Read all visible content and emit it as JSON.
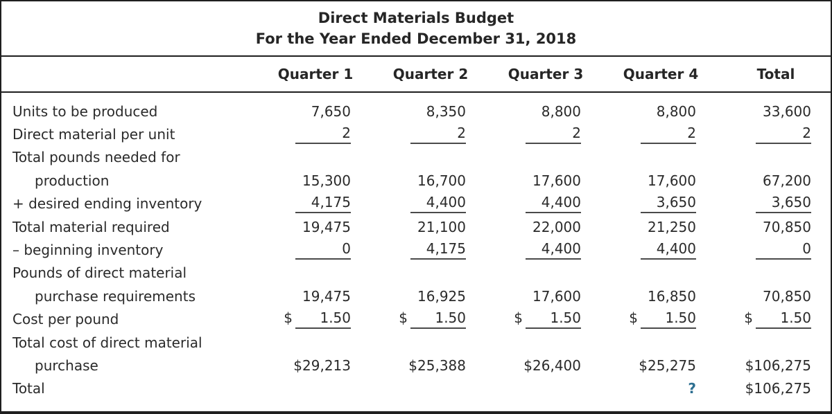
{
  "title": {
    "line1": "Direct Materials Budget",
    "line2": "For the Year Ended December 31, 2018"
  },
  "columns": {
    "quarter1": "Quarter 1",
    "quarter2": "Quarter 2",
    "quarter3": "Quarter 3",
    "quarter4": "Quarter 4",
    "total": "Total"
  },
  "currency": "$",
  "colors": {
    "text": "#2a2a2a",
    "border": "#1f1f1f",
    "underline": "#4a4a4a",
    "question_mark": "#2d6f91"
  },
  "rows": [
    {
      "label": "Units to be produced",
      "values": [
        "7,650",
        "8,350",
        "8,800",
        "8,800",
        "33,600"
      ]
    },
    {
      "label": "Direct material per unit",
      "values": [
        "2",
        "2",
        "2",
        "2",
        "2"
      ]
    },
    {
      "label": "Total pounds needed for",
      "values": [
        "",
        "",
        "",
        "",
        ""
      ]
    },
    {
      "label": "production",
      "values": [
        "15,300",
        "16,700",
        "17,600",
        "17,600",
        "67,200"
      ]
    },
    {
      "label": "+ desired ending inventory",
      "values": [
        "4,175",
        "4,400",
        "4,400",
        "3,650",
        "3,650"
      ]
    },
    {
      "label": "Total material required",
      "values": [
        "19,475",
        "21,100",
        "22,000",
        "21,250",
        "70,850"
      ]
    },
    {
      "label": "– beginning inventory",
      "values": [
        "0",
        "4,175",
        "4,400",
        "4,400",
        "0"
      ]
    },
    {
      "label": "Pounds of direct material",
      "values": [
        "",
        "",
        "",
        "",
        ""
      ]
    },
    {
      "label": "purchase requirements",
      "values": [
        "19,475",
        "16,925",
        "17,600",
        "16,850",
        "70,850"
      ]
    },
    {
      "label": "Cost per pound",
      "values": [
        "1.50",
        "1.50",
        "1.50",
        "1.50",
        "1.50"
      ]
    },
    {
      "label": "Total cost of direct material",
      "values": [
        "",
        "",
        "",
        "",
        ""
      ]
    },
    {
      "label": "purchase",
      "values": [
        "$29,213",
        "$25,388",
        "$26,400",
        "$25,275",
        "$106,275"
      ]
    },
    {
      "label": "Total",
      "values": [
        "",
        "",
        "",
        "?",
        "$106,275"
      ]
    }
  ]
}
